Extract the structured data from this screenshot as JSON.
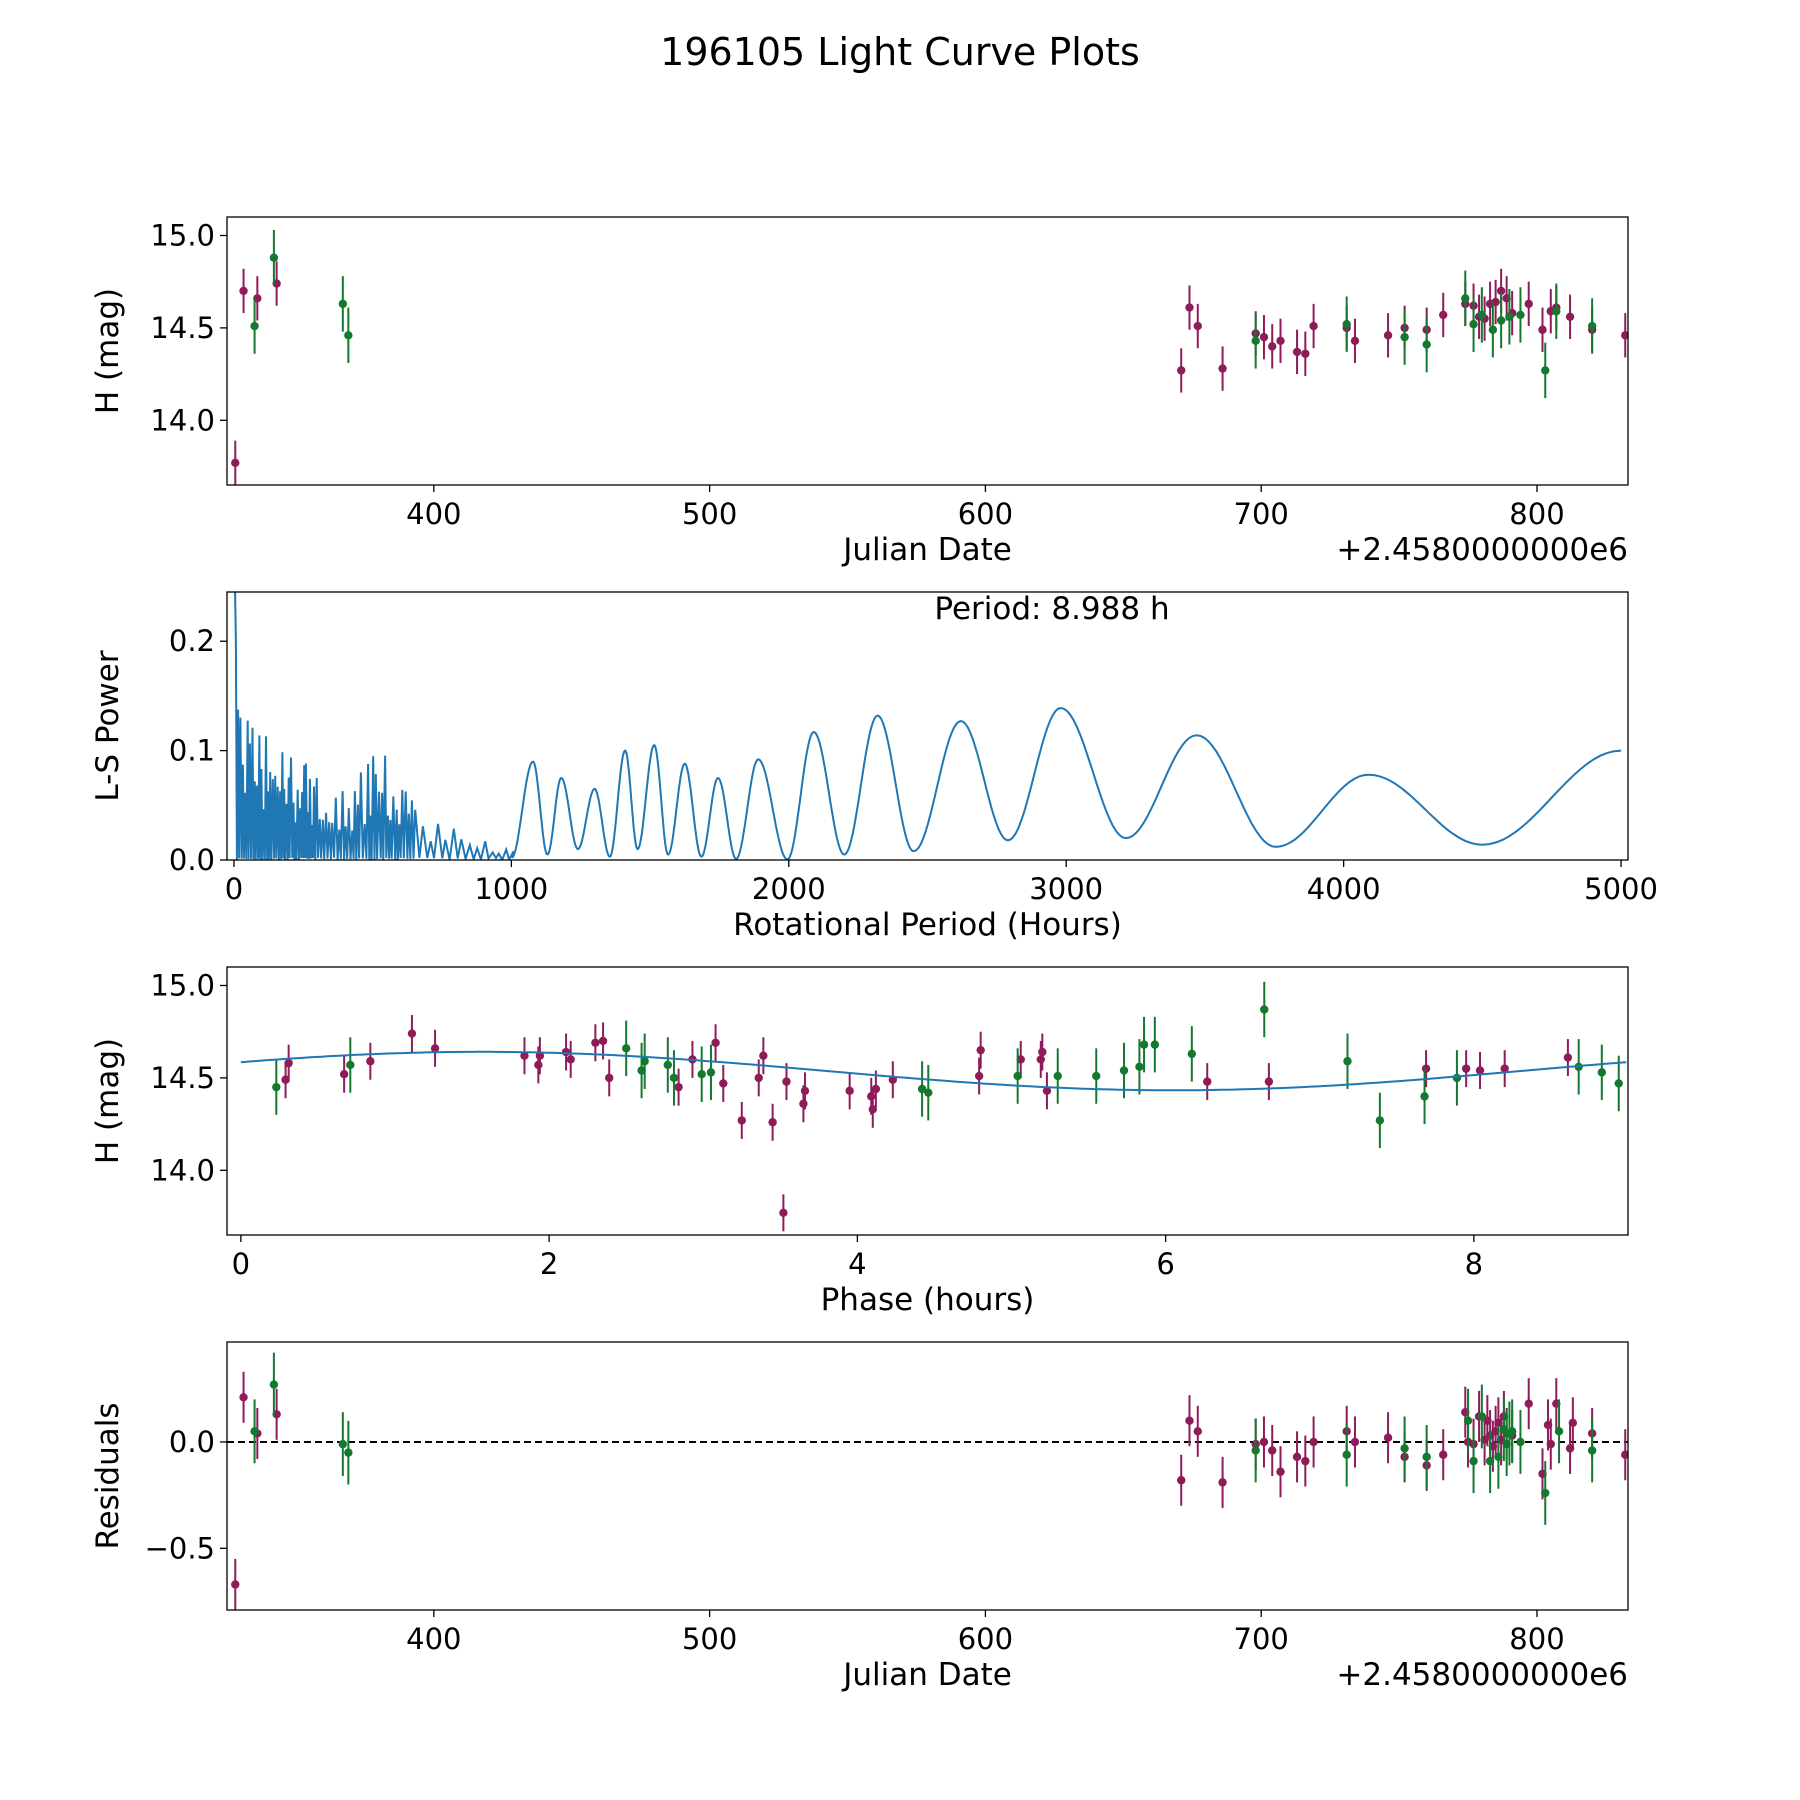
{
  "figure_title": "196105 Light Curve Plots",
  "colors": {
    "red": "#8e1b5a",
    "green": "#13792f",
    "line": "#1f77b4",
    "axis": "#000000"
  },
  "chart_data": [
    {
      "id": "lightcurve",
      "type": "scatter",
      "xlabel": "Julian Date",
      "ylabel": "H (mag)",
      "offset_label": "+2.4580000000e6",
      "xlim": [
        325,
        833
      ],
      "ylim": [
        13.65,
        15.1
      ],
      "xticks": [
        {
          "v": 400,
          "label": "400"
        },
        {
          "v": 500,
          "label": "500"
        },
        {
          "v": 600,
          "label": "600"
        },
        {
          "v": 700,
          "label": "700"
        },
        {
          "v": 800,
          "label": "800"
        }
      ],
      "yticks": [
        {
          "v": 14.0,
          "label": "14.0"
        },
        {
          "v": 14.5,
          "label": "14.5"
        },
        {
          "v": 15.0,
          "label": "15.0"
        }
      ],
      "series": [
        {
          "name": "red",
          "color": "#8e1b5a",
          "err": 0.12,
          "points": [
            [
              328,
              13.77
            ],
            [
              331,
              14.7
            ],
            [
              336,
              14.66
            ],
            [
              343,
              14.74
            ],
            [
              671,
              14.27
            ],
            [
              674,
              14.61
            ],
            [
              677,
              14.51
            ],
            [
              686,
              14.28
            ],
            [
              698,
              14.47
            ],
            [
              701,
              14.45
            ],
            [
              704,
              14.4
            ],
            [
              707,
              14.43
            ],
            [
              713,
              14.37
            ],
            [
              716,
              14.36
            ],
            [
              719,
              14.51
            ],
            [
              731,
              14.5
            ],
            [
              734,
              14.43
            ],
            [
              746,
              14.46
            ],
            [
              752,
              14.5
            ],
            [
              760,
              14.49
            ],
            [
              766,
              14.57
            ],
            [
              774,
              14.63
            ],
            [
              777,
              14.62
            ],
            [
              779,
              14.56
            ],
            [
              781,
              14.55
            ],
            [
              783,
              14.63
            ],
            [
              785,
              14.64
            ],
            [
              787,
              14.7
            ],
            [
              789,
              14.66
            ],
            [
              791,
              14.58
            ],
            [
              797,
              14.63
            ],
            [
              802,
              14.49
            ],
            [
              805,
              14.59
            ],
            [
              807,
              14.61
            ],
            [
              812,
              14.56
            ],
            [
              820,
              14.49
            ],
            [
              832,
              14.46
            ]
          ]
        },
        {
          "name": "green",
          "color": "#13792f",
          "err": 0.15,
          "points": [
            [
              335,
              14.51
            ],
            [
              342,
              14.88
            ],
            [
              367,
              14.63
            ],
            [
              369,
              14.46
            ],
            [
              698,
              14.43
            ],
            [
              731,
              14.52
            ],
            [
              752,
              14.45
            ],
            [
              760,
              14.41
            ],
            [
              774,
              14.66
            ],
            [
              777,
              14.52
            ],
            [
              780,
              14.57
            ],
            [
              784,
              14.49
            ],
            [
              787,
              14.54
            ],
            [
              790,
              14.56
            ],
            [
              794,
              14.57
            ],
            [
              803,
              14.27
            ],
            [
              807,
              14.59
            ],
            [
              820,
              14.51
            ]
          ]
        }
      ]
    },
    {
      "id": "periodogram",
      "type": "line",
      "xlabel": "Rotational Period (Hours)",
      "ylabel": "L-S Power",
      "annotation": "Period: 8.988 h",
      "xlim": [
        -25,
        5025
      ],
      "ylim": [
        0.0,
        0.245
      ],
      "xticks": [
        {
          "v": 0,
          "label": "0"
        },
        {
          "v": 1000,
          "label": "1000"
        },
        {
          "v": 2000,
          "label": "2000"
        },
        {
          "v": 3000,
          "label": "3000"
        },
        {
          "v": 4000,
          "label": "4000"
        },
        {
          "v": 5000,
          "label": "5000"
        }
      ],
      "yticks": [
        {
          "v": 0.0,
          "label": "0.0"
        },
        {
          "v": 0.1,
          "label": "0.1"
        },
        {
          "v": 0.2,
          "label": "0.2"
        }
      ],
      "peaks": [
        [
          1000,
          0.0015
        ],
        [
          1078,
          0.09
        ],
        [
          1130,
          0.005
        ],
        [
          1180,
          0.075
        ],
        [
          1240,
          0.01
        ],
        [
          1300,
          0.065
        ],
        [
          1355,
          0.003
        ],
        [
          1410,
          0.1
        ],
        [
          1455,
          0.01
        ],
        [
          1515,
          0.105
        ],
        [
          1565,
          0.005
        ],
        [
          1625,
          0.088
        ],
        [
          1685,
          0.003
        ],
        [
          1745,
          0.075
        ],
        [
          1810,
          0.001
        ],
        [
          1890,
          0.092
        ],
        [
          1995,
          0.0005
        ],
        [
          2090,
          0.117
        ],
        [
          2200,
          0.005
        ],
        [
          2320,
          0.132
        ],
        [
          2450,
          0.008
        ],
        [
          2620,
          0.127
        ],
        [
          2790,
          0.018
        ],
        [
          2980,
          0.139
        ],
        [
          3215,
          0.02
        ],
        [
          3470,
          0.114
        ],
        [
          3755,
          0.012
        ],
        [
          4090,
          0.078
        ],
        [
          4500,
          0.014
        ],
        [
          5000,
          0.1
        ]
      ],
      "start_value": 0.25
    },
    {
      "id": "phase",
      "type": "scatter",
      "xlabel": "Phase (hours)",
      "ylabel": "H (mag)",
      "xlim": [
        -0.09,
        9.0
      ],
      "ylim": [
        13.65,
        15.1
      ],
      "xticks": [
        {
          "v": 0,
          "label": "0"
        },
        {
          "v": 2,
          "label": "2"
        },
        {
          "v": 4,
          "label": "4"
        },
        {
          "v": 6,
          "label": "6"
        },
        {
          "v": 8,
          "label": "8"
        }
      ],
      "yticks": [
        {
          "v": 14.0,
          "label": "14.0"
        },
        {
          "v": 14.5,
          "label": "14.5"
        },
        {
          "v": 15.0,
          "label": "15.0"
        }
      ],
      "fit": {
        "period": 8.988,
        "mean": 14.537,
        "amplitude": 0.104,
        "peak_phase": 1.56
      },
      "series": [
        {
          "name": "red",
          "color": "#8e1b5a",
          "err": 0.1,
          "points": [
            [
              0.29,
              14.49
            ],
            [
              0.31,
              14.58
            ],
            [
              0.67,
              14.52
            ],
            [
              0.84,
              14.59
            ],
            [
              1.11,
              14.74
            ],
            [
              1.26,
              14.66
            ],
            [
              1.84,
              14.62
            ],
            [
              1.93,
              14.57
            ],
            [
              1.94,
              14.62
            ],
            [
              2.11,
              14.64
            ],
            [
              2.14,
              14.6
            ],
            [
              2.3,
              14.69
            ],
            [
              2.35,
              14.7
            ],
            [
              2.39,
              14.5
            ],
            [
              2.84,
              14.45
            ],
            [
              2.93,
              14.6
            ],
            [
              3.08,
              14.69
            ],
            [
              3.13,
              14.47
            ],
            [
              3.25,
              14.27
            ],
            [
              3.36,
              14.5
            ],
            [
              3.39,
              14.62
            ],
            [
              3.45,
              14.26
            ],
            [
              3.52,
              13.77
            ],
            [
              3.54,
              14.48
            ],
            [
              3.65,
              14.36
            ],
            [
              3.66,
              14.43
            ],
            [
              3.95,
              14.43
            ],
            [
              4.09,
              14.4
            ],
            [
              4.1,
              14.33
            ],
            [
              4.12,
              14.44
            ],
            [
              4.23,
              14.49
            ],
            [
              4.79,
              14.51
            ],
            [
              4.8,
              14.65
            ],
            [
              5.06,
              14.6
            ],
            [
              5.19,
              14.6
            ],
            [
              5.2,
              14.64
            ],
            [
              5.23,
              14.43
            ],
            [
              6.27,
              14.48
            ],
            [
              6.67,
              14.48
            ],
            [
              7.69,
              14.55
            ],
            [
              7.95,
              14.55
            ],
            [
              8.04,
              14.54
            ],
            [
              8.2,
              14.55
            ],
            [
              8.61,
              14.61
            ]
          ]
        },
        {
          "name": "green",
          "color": "#13792f",
          "err": 0.15,
          "points": [
            [
              0.23,
              14.45
            ],
            [
              0.71,
              14.57
            ],
            [
              2.5,
              14.66
            ],
            [
              2.6,
              14.54
            ],
            [
              2.62,
              14.59
            ],
            [
              2.77,
              14.57
            ],
            [
              2.81,
              14.5
            ],
            [
              2.99,
              14.52
            ],
            [
              3.05,
              14.53
            ],
            [
              4.42,
              14.44
            ],
            [
              4.46,
              14.42
            ],
            [
              5.04,
              14.51
            ],
            [
              5.3,
              14.51
            ],
            [
              5.55,
              14.51
            ],
            [
              5.73,
              14.54
            ],
            [
              5.83,
              14.56
            ],
            [
              5.86,
              14.68
            ],
            [
              5.93,
              14.68
            ],
            [
              6.17,
              14.63
            ],
            [
              6.64,
              14.87
            ],
            [
              7.18,
              14.59
            ],
            [
              7.39,
              14.27
            ],
            [
              7.68,
              14.4
            ],
            [
              7.89,
              14.5
            ],
            [
              8.68,
              14.56
            ],
            [
              8.83,
              14.53
            ],
            [
              8.94,
              14.47
            ]
          ]
        }
      ]
    },
    {
      "id": "residuals",
      "type": "scatter",
      "xlabel": "Julian Date",
      "ylabel": "Residuals",
      "offset_label": "+2.4580000000e6",
      "xlim": [
        325,
        833
      ],
      "ylim": [
        -0.79,
        0.47
      ],
      "reference_line": 0.0,
      "xticks": [
        {
          "v": 400,
          "label": "400"
        },
        {
          "v": 500,
          "label": "500"
        },
        {
          "v": 600,
          "label": "600"
        },
        {
          "v": 700,
          "label": "700"
        },
        {
          "v": 800,
          "label": "800"
        }
      ],
      "yticks": [
        {
          "v": -0.5,
          "label": "−0.5"
        },
        {
          "v": 0.0,
          "label": "0.0"
        }
      ],
      "series": [
        {
          "name": "red",
          "color": "#8e1b5a",
          "err": 0.12,
          "points": [
            [
              328,
              -0.67
            ],
            [
              331,
              0.21
            ],
            [
              336,
              0.04
            ],
            [
              343,
              0.13
            ],
            [
              671,
              -0.18
            ],
            [
              674,
              0.1
            ],
            [
              677,
              0.05
            ],
            [
              686,
              -0.19
            ],
            [
              698,
              -0.01
            ],
            [
              701,
              0.0
            ],
            [
              704,
              -0.04
            ],
            [
              707,
              -0.14
            ],
            [
              713,
              -0.07
            ],
            [
              716,
              -0.09
            ],
            [
              719,
              0.0
            ],
            [
              731,
              0.05
            ],
            [
              734,
              0.0
            ],
            [
              746,
              0.02
            ],
            [
              752,
              -0.07
            ],
            [
              760,
              -0.11
            ],
            [
              766,
              -0.06
            ],
            [
              774,
              0.14
            ],
            [
              775,
              0.0
            ],
            [
              777,
              -0.01
            ],
            [
              779,
              0.12
            ],
            [
              781,
              0.01
            ],
            [
              782,
              0.1
            ],
            [
              783,
              0.03
            ],
            [
              784,
              -0.02
            ],
            [
              785,
              0.05
            ],
            [
              786,
              0.09
            ],
            [
              787,
              0.01
            ],
            [
              788,
              0.12
            ],
            [
              789,
              0.04
            ],
            [
              791,
              0.03
            ],
            [
              797,
              0.18
            ],
            [
              802,
              -0.15
            ],
            [
              804,
              0.08
            ],
            [
              805,
              -0.01
            ],
            [
              807,
              0.18
            ],
            [
              812,
              -0.03
            ],
            [
              813,
              0.09
            ],
            [
              820,
              0.04
            ],
            [
              832,
              -0.06
            ]
          ]
        },
        {
          "name": "green",
          "color": "#13792f",
          "err": 0.15,
          "points": [
            [
              335,
              0.05
            ],
            [
              342,
              0.27
            ],
            [
              367,
              -0.01
            ],
            [
              369,
              -0.05
            ],
            [
              698,
              -0.04
            ],
            [
              731,
              -0.06
            ],
            [
              752,
              -0.03
            ],
            [
              760,
              -0.07
            ],
            [
              775,
              0.1
            ],
            [
              777,
              -0.09
            ],
            [
              780,
              0.12
            ],
            [
              783,
              -0.09
            ],
            [
              786,
              -0.07
            ],
            [
              788,
              0.06
            ],
            [
              789,
              -0.01
            ],
            [
              790,
              0.04
            ],
            [
              791,
              0.05
            ],
            [
              794,
              0.0
            ],
            [
              803,
              -0.24
            ],
            [
              808,
              0.05
            ],
            [
              820,
              -0.04
            ]
          ]
        }
      ]
    }
  ]
}
